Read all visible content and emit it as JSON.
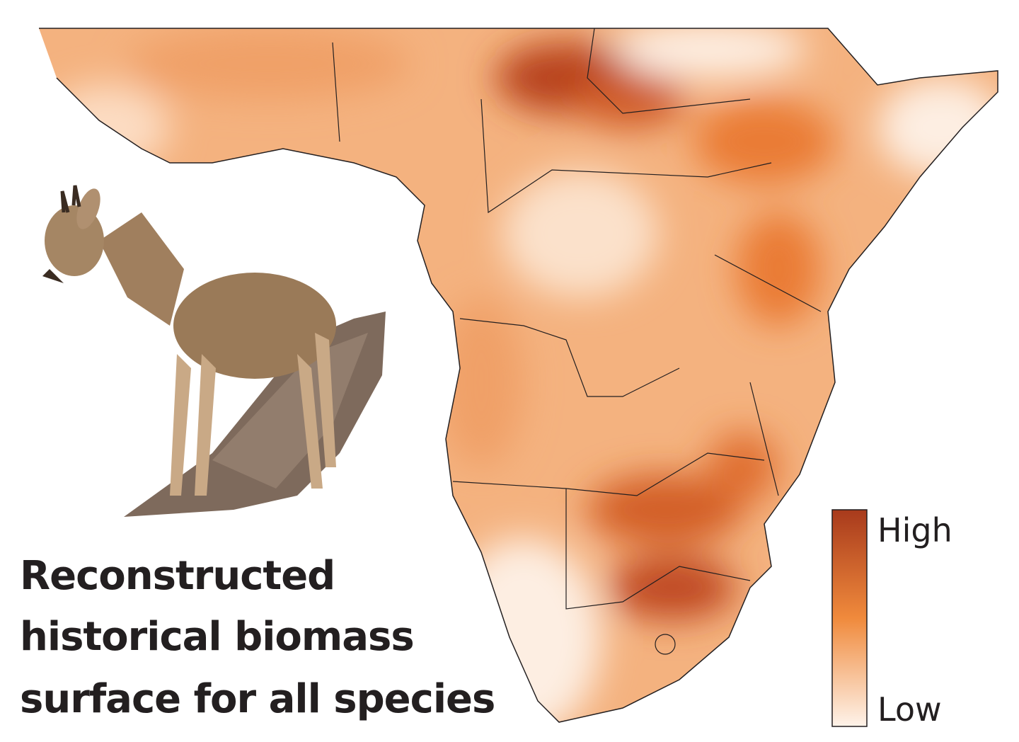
{
  "title": {
    "lines": [
      "Reconstructed",
      "historical biomass",
      "surface for all species"
    ]
  },
  "legend": {
    "high": "High",
    "low": "Low"
  }
}
